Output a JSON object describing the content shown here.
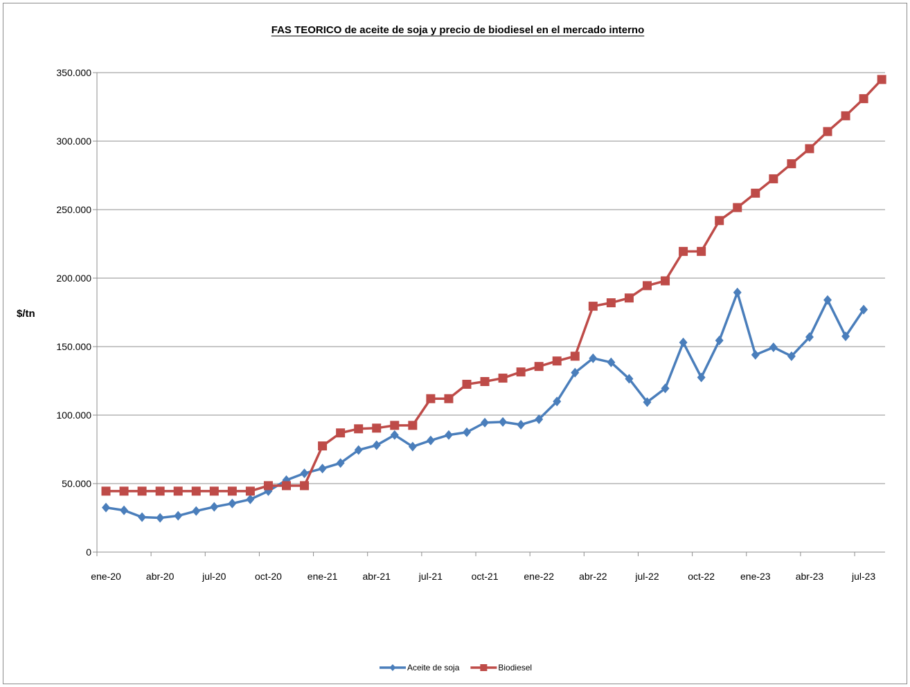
{
  "chart_data": {
    "type": "line",
    "title": "FAS TEORICO de aceite de soja y precio de biodiesel en el mercado interno",
    "ylabel": "$/tn",
    "xlabel": "",
    "ylim": [
      0,
      350000
    ],
    "y_ticks": [
      0,
      50000,
      100000,
      150000,
      200000,
      250000,
      300000,
      350000
    ],
    "y_tick_labels": [
      "0",
      "50.000",
      "100.000",
      "150.000",
      "200.000",
      "250.000",
      "300.000",
      "350.000"
    ],
    "x_tick_labels": [
      "ene-20",
      "abr-20",
      "jul-20",
      "oct-20",
      "ene-21",
      "abr-21",
      "jul-21",
      "oct-21",
      "ene-22",
      "abr-22",
      "jul-22",
      "oct-22",
      "ene-23",
      "abr-23",
      "jul-23"
    ],
    "x_start": "ene-20",
    "legend_position": "bottom",
    "grid": "horizontal",
    "series": [
      {
        "name": "Aceite de soja",
        "color": "#4A7EBB",
        "marker": "diamond",
        "values": [
          32500,
          30500,
          25500,
          25000,
          26500,
          30000,
          33000,
          35500,
          38500,
          44500,
          52500,
          57500,
          61000,
          65000,
          74500,
          78000,
          85500,
          77000,
          81500,
          85500,
          87500,
          94500,
          95000,
          93000,
          97000,
          110000,
          131000,
          141500,
          138500,
          126500,
          109500,
          119500,
          153000,
          127500,
          154500,
          189500,
          144000,
          149500,
          143000,
          157000,
          184000,
          157500,
          177000
        ]
      },
      {
        "name": "Biodiesel",
        "color": "#BE4B48",
        "marker": "square",
        "values": [
          44500,
          44500,
          44500,
          44500,
          44500,
          44500,
          44500,
          44500,
          44500,
          48500,
          48500,
          48500,
          77500,
          87000,
          90000,
          90500,
          92500,
          92500,
          112000,
          112000,
          122500,
          124500,
          127000,
          131500,
          135500,
          139500,
          143000,
          179500,
          182000,
          185500,
          194500,
          198000,
          219500,
          219500,
          242000,
          251500,
          262000,
          272500,
          283500,
          294500,
          307000,
          318500,
          331000,
          345000
        ]
      }
    ]
  }
}
